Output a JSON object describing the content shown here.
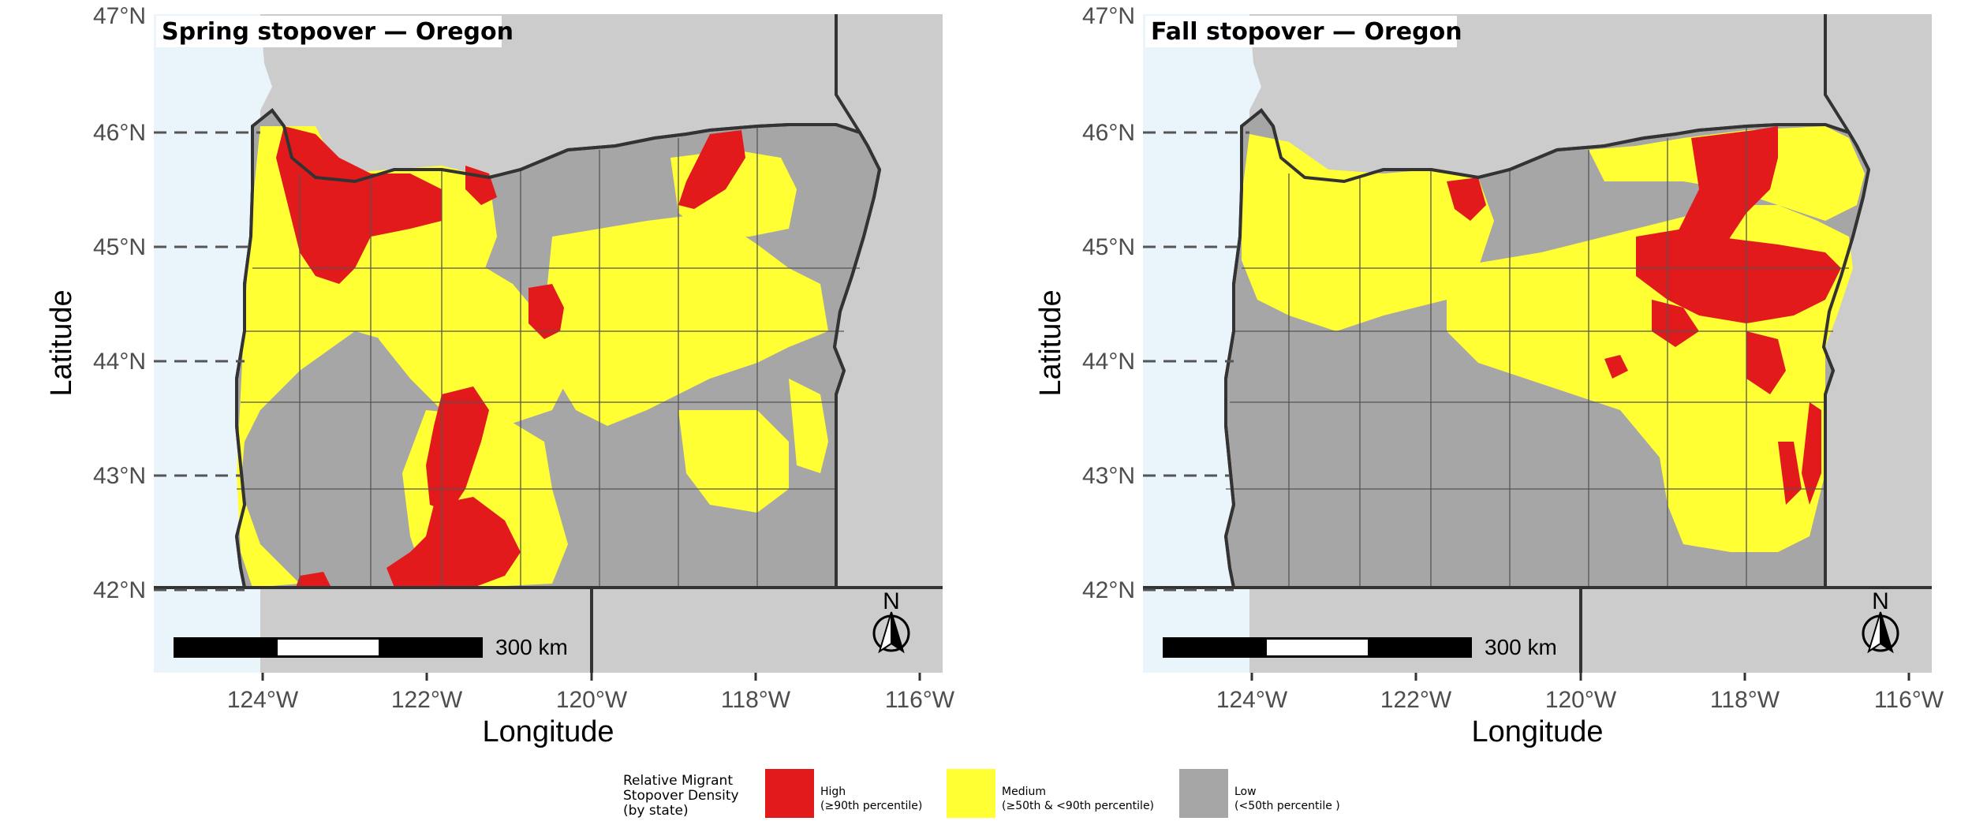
{
  "panels": [
    {
      "title": "Spring stopover — Oregon"
    },
    {
      "title": "Fall stopover — Oregon"
    }
  ],
  "axes": {
    "xlabel": "Longitude",
    "ylabel": "Latitude",
    "y_ticks": [
      "47°N",
      "46°N",
      "45°N",
      "44°N",
      "43°N",
      "42°N"
    ],
    "x_ticks": [
      "124°W",
      "122°W",
      "120°W",
      "118°W",
      "116°W"
    ],
    "lon_range": [
      -125.3,
      -115.7
    ],
    "lat_range": [
      41.25,
      47.0
    ]
  },
  "scale_bar": {
    "label": "300 km"
  },
  "north_arrow": {
    "label": "N",
    "icon": "north-arrow-icon"
  },
  "legend": {
    "title": "Relative Migrant\nStopover Density\n(by state)",
    "items": [
      {
        "name": "High",
        "detail": "(≥90th percentile)",
        "color": "#e31a1c"
      },
      {
        "name": "Medium",
        "detail": "(≥50th & <90th percentile)",
        "color": "#ffff33"
      },
      {
        "name": "Low",
        "detail": "(<50th percentile )",
        "color": "#a6a6a6"
      }
    ]
  },
  "colors": {
    "ocean": "#eaf4fb",
    "land_outside": "#cccccc",
    "oregon_low": "#a6a6a6",
    "medium": "#ffff33",
    "high": "#e31a1c"
  }
}
